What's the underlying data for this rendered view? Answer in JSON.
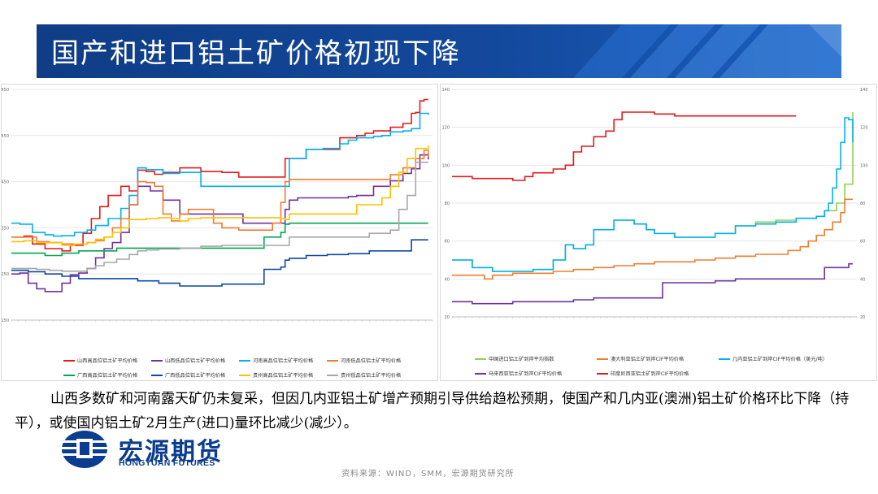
{
  "title": "国产和进口铝土矿价格初现下降",
  "summary": "山西多数矿和河南露天矿仍未复采，但因几内亚铝土矿增产预期引导供给趋松预期，使国产和几内亚(澳洲)铝土矿价格环比下降（持平），或使国内铝土矿2月生产(进口)量环比减少(减少）。",
  "logo": {
    "cn": "宏源期货",
    "en": "HONGYUAN FUTURES"
  },
  "source": "资料来源：WIND，SMM，宏源期货研究所",
  "colors": {
    "banner": "#13489b",
    "accent": "#0a3d8f"
  },
  "chart_data": [
    {
      "type": "line",
      "ylim": [
        150,
        650
      ],
      "yticks": [
        150,
        250,
        350,
        450,
        550,
        650
      ],
      "xlim": [
        0,
        100
      ],
      "series": [
        {
          "name": "山西高品位铝土矿平均价格",
          "color": "#e31a1c",
          "x": [
            0,
            3,
            5,
            8,
            12,
            14,
            17,
            19,
            21,
            23,
            26,
            28,
            30,
            32,
            34,
            36,
            40,
            45,
            50,
            54,
            60,
            64,
            65,
            68,
            70,
            72,
            78,
            82,
            84,
            86,
            90,
            93,
            95,
            96,
            97,
            98,
            99
          ],
          "y": [
            330,
            332,
            315,
            305,
            300,
            312,
            338,
            370,
            396,
            420,
            440,
            430,
            475,
            472,
            466,
            470,
            480,
            472,
            470,
            460,
            460,
            460,
            500,
            500,
            520,
            520,
            545,
            550,
            555,
            560,
            568,
            576,
            598,
            600,
            625,
            628,
            628
          ]
        },
        {
          "name": "山西低品位铝土矿平均价格",
          "color": "#7030a0",
          "x": [
            0,
            2,
            4,
            6,
            8,
            10,
            12,
            14,
            16,
            18,
            20,
            22,
            24,
            26,
            28,
            30,
            33,
            36,
            40,
            45,
            50,
            55,
            60,
            63,
            65,
            66,
            68,
            72,
            76,
            80,
            82,
            86,
            90,
            93,
            95,
            97,
            99
          ],
          "y": [
            250,
            252,
            230,
            218,
            212,
            212,
            230,
            248,
            252,
            262,
            285,
            305,
            318,
            340,
            400,
            440,
            430,
            410,
            380,
            380,
            380,
            360,
            360,
            360,
            390,
            410,
            415,
            415,
            415,
            418,
            420,
            440,
            452,
            468,
            478,
            508,
            498
          ]
        },
        {
          "name": "河南高品位铝土矿平均价格",
          "color": "#00b0f0",
          "x": [
            0,
            2,
            5,
            8,
            10,
            12,
            15,
            18,
            20,
            23,
            26,
            28,
            30,
            32,
            36,
            40,
            42,
            45,
            50,
            55,
            60,
            62,
            65,
            66,
            68,
            70,
            74,
            78,
            80,
            82,
            86,
            88,
            90,
            93,
            95,
            97,
            99
          ],
          "y": [
            360,
            358,
            340,
            335,
            332,
            333,
            340,
            345,
            355,
            370,
            392,
            420,
            480,
            476,
            468,
            470,
            470,
            440,
            440,
            440,
            440,
            440,
            440,
            500,
            500,
            520,
            522,
            532,
            540,
            545,
            548,
            550,
            558,
            560,
            565,
            598,
            595
          ]
        },
        {
          "name": "河南低品位铝土矿平均价格",
          "color": "#ed7d31",
          "x": [
            0,
            3,
            6,
            9,
            12,
            15,
            18,
            20,
            22,
            24,
            26,
            28,
            30,
            32,
            34,
            36,
            38,
            40,
            42,
            45,
            48,
            50,
            54,
            58,
            60,
            62,
            64,
            65,
            66,
            70,
            75,
            80,
            85,
            90,
            93,
            96,
            98,
            99
          ],
          "y": [
            330,
            330,
            320,
            318,
            315,
            315,
            318,
            322,
            330,
            350,
            370,
            400,
            450,
            448,
            440,
            380,
            365,
            380,
            390,
            390,
            360,
            350,
            345,
            345,
            345,
            360,
            405,
            450,
            455,
            455,
            455,
            455,
            455,
            465,
            480,
            500,
            518,
            503
          ]
        },
        {
          "name": "广西高品位铝土矿平均价格",
          "color": "#00a651",
          "x": [
            0,
            4,
            8,
            12,
            16,
            20,
            25,
            30,
            35,
            40,
            45,
            50,
            55,
            58,
            60,
            62,
            64,
            65,
            66,
            70,
            75,
            80,
            85,
            90,
            95,
            99
          ],
          "y": [
            295,
            295,
            290,
            295,
            300,
            300,
            306,
            306,
            306,
            306,
            306,
            306,
            306,
            306,
            330,
            330,
            340,
            358,
            360,
            360,
            360,
            360,
            360,
            360,
            360,
            360
          ]
        },
        {
          "name": "广西低品位铝土矿平均价格",
          "color": "#0d47a1",
          "x": [
            0,
            4,
            8,
            12,
            16,
            20,
            25,
            30,
            35,
            40,
            45,
            50,
            55,
            58,
            60,
            62,
            64,
            65,
            66,
            70,
            75,
            80,
            85,
            90,
            95,
            99
          ],
          "y": [
            258,
            255,
            250,
            245,
            240,
            240,
            240,
            235,
            230,
            224,
            224,
            228,
            228,
            228,
            260,
            260,
            265,
            280,
            284,
            290,
            292,
            294,
            300,
            300,
            324,
            324
          ]
        },
        {
          "name": "贵州高品位铝土矿平均价格",
          "color": "#ffc000",
          "x": [
            0,
            3,
            6,
            9,
            12,
            15,
            18,
            20,
            22,
            24,
            26,
            28,
            30,
            32,
            35,
            38,
            40,
            42,
            45,
            50,
            55,
            58,
            60,
            62,
            64,
            65,
            66,
            70,
            75,
            80,
            82,
            84,
            86,
            88,
            90,
            92,
            94,
            96,
            99
          ],
          "y": [
            320,
            322,
            318,
            318,
            312,
            315,
            318,
            325,
            330,
            340,
            350,
            368,
            368,
            370,
            372,
            370,
            365,
            370,
            372,
            372,
            372,
            372,
            372,
            372,
            370,
            368,
            380,
            380,
            380,
            380,
            400,
            400,
            400,
            415,
            440,
            470,
            500,
            522,
            528
          ]
        },
        {
          "name": "贵州低品位铝土矿平均价格",
          "color": "#a6a6a6",
          "x": [
            0,
            3,
            6,
            9,
            12,
            15,
            18,
            20,
            22,
            25,
            28,
            30,
            32,
            35,
            40,
            45,
            50,
            55,
            60,
            62,
            64,
            65,
            66,
            70,
            75,
            80,
            85,
            88,
            90,
            92,
            94,
            96,
            99
          ],
          "y": [
            262,
            262,
            260,
            258,
            256,
            256,
            262,
            268,
            275,
            282,
            292,
            300,
            302,
            304,
            306,
            310,
            312,
            312,
            312,
            312,
            312,
            312,
            330,
            330,
            330,
            330,
            338,
            338,
            345,
            390,
            420,
            492,
            492
          ]
        }
      ]
    },
    {
      "type": "line",
      "ylim": [
        20,
        140
      ],
      "yticks": [
        20,
        40,
        60,
        80,
        100,
        120,
        140
      ],
      "y2lim": [
        20,
        140
      ],
      "y2ticks": [
        20,
        40,
        60,
        80,
        100,
        120,
        140
      ],
      "xlim": [
        0,
        100
      ],
      "series": [
        {
          "name": "中国进口铝土矿到岸平均指数",
          "color": "#92d050",
          "x": [
            0,
            5,
            10,
            15,
            20,
            25,
            28,
            30,
            33,
            35,
            40,
            45,
            48,
            50,
            55,
            60,
            65,
            70,
            75,
            78,
            80,
            82,
            85,
            88,
            90,
            92,
            95,
            97,
            99
          ],
          "y": [
            50,
            46,
            44,
            44,
            45,
            50,
            58,
            56,
            58,
            66,
            71,
            69,
            66,
            64,
            62,
            62,
            64,
            68,
            70,
            70,
            71,
            71,
            72,
            72,
            73,
            76,
            80,
            90,
            128
          ]
        },
        {
          "name": "澳大利亚铝土矿到岸CIF平均价格",
          "color": "#ed7d31",
          "x": [
            0,
            5,
            8,
            10,
            15,
            20,
            25,
            30,
            35,
            40,
            45,
            50,
            55,
            60,
            65,
            70,
            75,
            80,
            83,
            86,
            88,
            90,
            92,
            94,
            96,
            97,
            98,
            99
          ],
          "y": [
            42,
            42,
            40,
            42,
            43,
            43,
            44,
            45,
            46,
            47,
            48,
            49,
            49,
            50,
            51,
            52,
            53,
            53,
            55,
            57,
            60,
            63,
            66,
            70,
            75,
            82,
            82,
            82
          ]
        },
        {
          "name": "几内亚铝土矿到岸CIF平均价格（美元/吨）",
          "color": "#00b0f0",
          "x": [
            0,
            5,
            10,
            15,
            20,
            25,
            28,
            30,
            33,
            35,
            40,
            45,
            48,
            50,
            55,
            60,
            65,
            70,
            75,
            78,
            80,
            82,
            85,
            88,
            90,
            92,
            93,
            94,
            95,
            96,
            97,
            98,
            99
          ],
          "y": [
            50,
            46,
            44,
            44,
            45,
            50,
            58,
            56,
            58,
            66,
            71,
            69,
            66,
            64,
            62,
            62,
            64,
            68,
            69,
            69,
            70,
            70,
            72,
            72,
            73,
            76,
            80,
            88,
            98,
            112,
            125,
            124,
            112
          ]
        },
        {
          "name": "马来西亚铝土矿到岸CIF平均价格",
          "color": "#7030a0",
          "x": [
            0,
            5,
            10,
            15,
            20,
            25,
            30,
            35,
            40,
            45,
            50,
            52,
            55,
            60,
            65,
            70,
            75,
            80,
            85,
            90,
            92,
            95,
            98,
            99
          ],
          "y": [
            28,
            27,
            27,
            28,
            28,
            28,
            29,
            30,
            30,
            30,
            30,
            38,
            38,
            38,
            39,
            40,
            40,
            40,
            40,
            40,
            46,
            46,
            48,
            48
          ]
        },
        {
          "name": "印度尼西亚铝土矿到岸CIF平均价格",
          "color": "#e31a1c",
          "x": [
            0,
            5,
            10,
            15,
            18,
            20,
            25,
            28,
            30,
            32,
            35,
            38,
            40,
            42,
            45,
            48,
            50,
            55,
            58,
            60,
            65,
            70,
            75,
            80,
            85
          ],
          "y": [
            94,
            93,
            93,
            92,
            94,
            96,
            98,
            100,
            107,
            110,
            115,
            118,
            124,
            128,
            128,
            128,
            127,
            126,
            126,
            126,
            126,
            126,
            126,
            126,
            126
          ]
        }
      ]
    }
  ]
}
